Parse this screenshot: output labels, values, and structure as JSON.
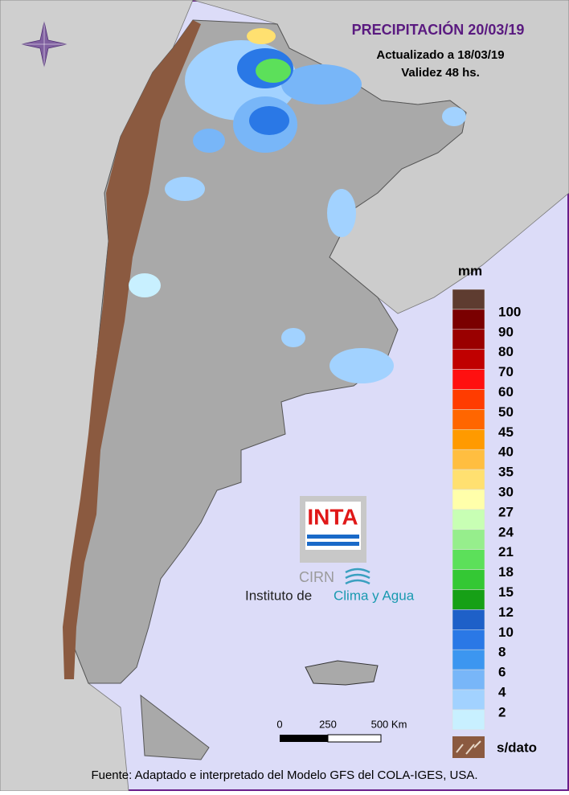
{
  "header": {
    "title": "PRECIPITACIÓN 20/03/19",
    "updated": "Actualizado a 18/03/19",
    "validity": "Validez 48 hs."
  },
  "legend": {
    "unit": "mm",
    "labels": [
      100,
      90,
      80,
      70,
      60,
      50,
      45,
      40,
      35,
      30,
      27,
      24,
      21,
      18,
      15,
      12,
      10,
      8,
      6,
      4,
      2
    ],
    "colors": [
      "#5e3c30",
      "#7a0000",
      "#9a0000",
      "#c00000",
      "#ff1010",
      "#ff3c00",
      "#ff6600",
      "#ff9a00",
      "#ffbe40",
      "#ffe070",
      "#ffffaa",
      "#c8ffb4",
      "#96ee8c",
      "#5ce05a",
      "#34c834",
      "#16a016",
      "#1e60c8",
      "#2a78e6",
      "#3c96f0",
      "#78b6f8",
      "#a2d2ff",
      "#c8f0ff"
    ],
    "no_data": "s/dato"
  },
  "scale_bar": {
    "labels": [
      "0",
      "250",
      "500 Km"
    ]
  },
  "logo": {
    "inta": "INTA",
    "cirn": "CIRN",
    "institute": "Instituto de",
    "institute_name": "Clima y Agua"
  },
  "footer": {
    "source": "Fuente: Adaptado e interpretado del Modelo GFS del COLA-IGES, USA."
  }
}
